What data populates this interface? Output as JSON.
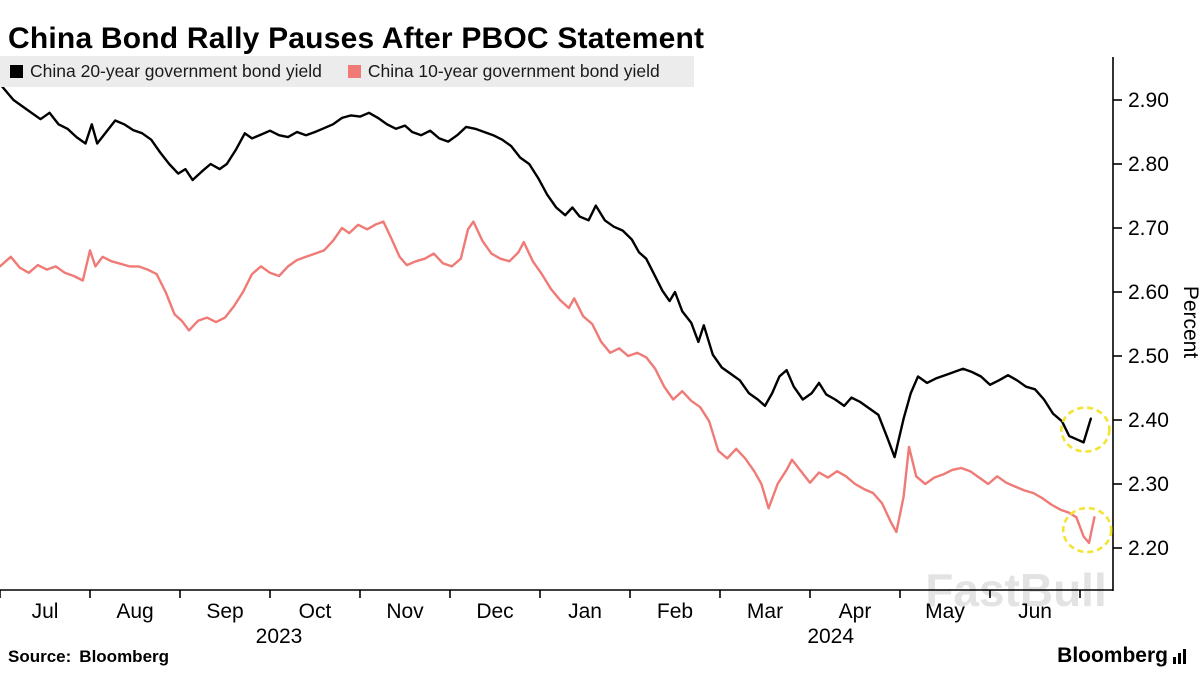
{
  "title": "China Bond Rally Pauses After PBOC Statement",
  "legend": {
    "items": [
      {
        "label": "China 20-year government bond yield",
        "color": "#000000"
      },
      {
        "label": "China 10-year government bond yield",
        "color": "#ef7a76"
      }
    ]
  },
  "watermark": "FastBull",
  "footer": {
    "source_label": "Source:",
    "source_value": "Bloomberg",
    "brand": "Bloomberg"
  },
  "chart_data": {
    "type": "line",
    "title": "China Bond Rally Pauses After PBOC Statement",
    "xlabel": "",
    "ylabel": "Percent",
    "ylim": [
      2.15,
      2.95
    ],
    "yticks": [
      2.2,
      2.3,
      2.4,
      2.5,
      2.6,
      2.7,
      2.8,
      2.9
    ],
    "x_months": [
      "Jul",
      "Aug",
      "Sep",
      "Oct",
      "Nov",
      "Dec",
      "Jan",
      "Feb",
      "Mar",
      "Apr",
      "May",
      "Jun"
    ],
    "year_labels": [
      {
        "text": "2023",
        "month_x": 2.6
      },
      {
        "text": "2024",
        "month_x": 8.73
      }
    ],
    "grid": false,
    "legend_position": "top-left",
    "axis_color": "#000000",
    "highlight_color": "#f2e431",
    "series": [
      {
        "name": "China 20-year government bond yield",
        "color": "#000000",
        "points": [
          [
            -0.5,
            2.925
          ],
          [
            -0.35,
            2.9
          ],
          [
            -0.2,
            2.885
          ],
          [
            -0.05,
            2.87
          ],
          [
            0.05,
            2.88
          ],
          [
            0.15,
            2.862
          ],
          [
            0.25,
            2.855
          ],
          [
            0.35,
            2.842
          ],
          [
            0.45,
            2.832
          ],
          [
            0.52,
            2.862
          ],
          [
            0.58,
            2.832
          ],
          [
            0.68,
            2.85
          ],
          [
            0.78,
            2.868
          ],
          [
            0.88,
            2.862
          ],
          [
            0.98,
            2.853
          ],
          [
            1.08,
            2.848
          ],
          [
            1.18,
            2.838
          ],
          [
            1.28,
            2.818
          ],
          [
            1.38,
            2.8
          ],
          [
            1.48,
            2.785
          ],
          [
            1.56,
            2.792
          ],
          [
            1.64,
            2.775
          ],
          [
            1.74,
            2.788
          ],
          [
            1.84,
            2.8
          ],
          [
            1.94,
            2.792
          ],
          [
            2.02,
            2.8
          ],
          [
            2.12,
            2.822
          ],
          [
            2.22,
            2.848
          ],
          [
            2.3,
            2.84
          ],
          [
            2.4,
            2.846
          ],
          [
            2.5,
            2.852
          ],
          [
            2.6,
            2.845
          ],
          [
            2.7,
            2.842
          ],
          [
            2.8,
            2.85
          ],
          [
            2.9,
            2.845
          ],
          [
            3.0,
            2.85
          ],
          [
            3.1,
            2.856
          ],
          [
            3.2,
            2.862
          ],
          [
            3.3,
            2.872
          ],
          [
            3.4,
            2.876
          ],
          [
            3.5,
            2.874
          ],
          [
            3.6,
            2.88
          ],
          [
            3.7,
            2.872
          ],
          [
            3.8,
            2.862
          ],
          [
            3.9,
            2.855
          ],
          [
            4.0,
            2.86
          ],
          [
            4.08,
            2.85
          ],
          [
            4.18,
            2.845
          ],
          [
            4.28,
            2.852
          ],
          [
            4.38,
            2.84
          ],
          [
            4.48,
            2.835
          ],
          [
            4.58,
            2.845
          ],
          [
            4.68,
            2.858
          ],
          [
            4.78,
            2.855
          ],
          [
            4.88,
            2.85
          ],
          [
            4.98,
            2.845
          ],
          [
            5.08,
            2.838
          ],
          [
            5.18,
            2.828
          ],
          [
            5.28,
            2.81
          ],
          [
            5.38,
            2.8
          ],
          [
            5.48,
            2.778
          ],
          [
            5.58,
            2.752
          ],
          [
            5.68,
            2.732
          ],
          [
            5.78,
            2.72
          ],
          [
            5.86,
            2.732
          ],
          [
            5.94,
            2.718
          ],
          [
            6.04,
            2.712
          ],
          [
            6.12,
            2.735
          ],
          [
            6.22,
            2.712
          ],
          [
            6.32,
            2.702
          ],
          [
            6.42,
            2.696
          ],
          [
            6.52,
            2.682
          ],
          [
            6.6,
            2.662
          ],
          [
            6.68,
            2.652
          ],
          [
            6.76,
            2.63
          ],
          [
            6.86,
            2.602
          ],
          [
            6.94,
            2.586
          ],
          [
            7.0,
            2.6
          ],
          [
            7.08,
            2.57
          ],
          [
            7.18,
            2.552
          ],
          [
            7.26,
            2.522
          ],
          [
            7.32,
            2.548
          ],
          [
            7.42,
            2.502
          ],
          [
            7.52,
            2.482
          ],
          [
            7.62,
            2.472
          ],
          [
            7.72,
            2.462
          ],
          [
            7.82,
            2.442
          ],
          [
            7.92,
            2.432
          ],
          [
            8.0,
            2.422
          ],
          [
            8.08,
            2.442
          ],
          [
            8.16,
            2.468
          ],
          [
            8.24,
            2.478
          ],
          [
            8.32,
            2.452
          ],
          [
            8.42,
            2.432
          ],
          [
            8.52,
            2.442
          ],
          [
            8.6,
            2.458
          ],
          [
            8.68,
            2.44
          ],
          [
            8.78,
            2.432
          ],
          [
            8.88,
            2.422
          ],
          [
            8.96,
            2.435
          ],
          [
            9.06,
            2.428
          ],
          [
            9.16,
            2.418
          ],
          [
            9.26,
            2.408
          ],
          [
            9.36,
            2.372
          ],
          [
            9.44,
            2.342
          ],
          [
            9.54,
            2.402
          ],
          [
            9.62,
            2.442
          ],
          [
            9.7,
            2.468
          ],
          [
            9.8,
            2.458
          ],
          [
            9.9,
            2.465
          ],
          [
            10.0,
            2.47
          ],
          [
            10.1,
            2.475
          ],
          [
            10.2,
            2.48
          ],
          [
            10.3,
            2.475
          ],
          [
            10.4,
            2.468
          ],
          [
            10.5,
            2.455
          ],
          [
            10.6,
            2.462
          ],
          [
            10.7,
            2.47
          ],
          [
            10.8,
            2.462
          ],
          [
            10.9,
            2.452
          ],
          [
            11.0,
            2.448
          ],
          [
            11.1,
            2.432
          ],
          [
            11.2,
            2.41
          ],
          [
            11.3,
            2.398
          ],
          [
            11.38,
            2.375
          ],
          [
            11.46,
            2.37
          ],
          [
            11.54,
            2.365
          ],
          [
            11.62,
            2.402
          ]
        ]
      },
      {
        "name": "China 10-year government bond yield",
        "color": "#ef7a76",
        "points": [
          [
            -0.5,
            2.64
          ],
          [
            -0.38,
            2.655
          ],
          [
            -0.28,
            2.638
          ],
          [
            -0.18,
            2.63
          ],
          [
            -0.08,
            2.642
          ],
          [
            0.02,
            2.635
          ],
          [
            0.12,
            2.64
          ],
          [
            0.22,
            2.63
          ],
          [
            0.32,
            2.625
          ],
          [
            0.42,
            2.618
          ],
          [
            0.5,
            2.665
          ],
          [
            0.56,
            2.64
          ],
          [
            0.64,
            2.655
          ],
          [
            0.74,
            2.648
          ],
          [
            0.84,
            2.644
          ],
          [
            0.94,
            2.64
          ],
          [
            1.04,
            2.64
          ],
          [
            1.14,
            2.635
          ],
          [
            1.24,
            2.628
          ],
          [
            1.34,
            2.6
          ],
          [
            1.44,
            2.565
          ],
          [
            1.52,
            2.555
          ],
          [
            1.6,
            2.54
          ],
          [
            1.7,
            2.555
          ],
          [
            1.8,
            2.56
          ],
          [
            1.9,
            2.553
          ],
          [
            2.0,
            2.56
          ],
          [
            2.1,
            2.578
          ],
          [
            2.2,
            2.6
          ],
          [
            2.3,
            2.628
          ],
          [
            2.4,
            2.64
          ],
          [
            2.5,
            2.63
          ],
          [
            2.6,
            2.625
          ],
          [
            2.7,
            2.64
          ],
          [
            2.8,
            2.65
          ],
          [
            2.9,
            2.655
          ],
          [
            3.0,
            2.66
          ],
          [
            3.1,
            2.665
          ],
          [
            3.2,
            2.68
          ],
          [
            3.3,
            2.7
          ],
          [
            3.38,
            2.692
          ],
          [
            3.48,
            2.705
          ],
          [
            3.58,
            2.698
          ],
          [
            3.68,
            2.706
          ],
          [
            3.76,
            2.71
          ],
          [
            3.86,
            2.68
          ],
          [
            3.94,
            2.655
          ],
          [
            4.02,
            2.642
          ],
          [
            4.12,
            2.648
          ],
          [
            4.22,
            2.652
          ],
          [
            4.32,
            2.66
          ],
          [
            4.42,
            2.645
          ],
          [
            4.52,
            2.64
          ],
          [
            4.62,
            2.652
          ],
          [
            4.7,
            2.698
          ],
          [
            4.76,
            2.71
          ],
          [
            4.86,
            2.68
          ],
          [
            4.96,
            2.66
          ],
          [
            5.06,
            2.652
          ],
          [
            5.16,
            2.648
          ],
          [
            5.26,
            2.662
          ],
          [
            5.32,
            2.678
          ],
          [
            5.42,
            2.648
          ],
          [
            5.52,
            2.628
          ],
          [
            5.62,
            2.605
          ],
          [
            5.72,
            2.588
          ],
          [
            5.82,
            2.575
          ],
          [
            5.88,
            2.59
          ],
          [
            5.98,
            2.562
          ],
          [
            6.08,
            2.55
          ],
          [
            6.18,
            2.522
          ],
          [
            6.28,
            2.505
          ],
          [
            6.38,
            2.512
          ],
          [
            6.48,
            2.5
          ],
          [
            6.58,
            2.505
          ],
          [
            6.68,
            2.498
          ],
          [
            6.78,
            2.48
          ],
          [
            6.88,
            2.452
          ],
          [
            6.98,
            2.432
          ],
          [
            7.08,
            2.445
          ],
          [
            7.18,
            2.43
          ],
          [
            7.28,
            2.42
          ],
          [
            7.38,
            2.398
          ],
          [
            7.48,
            2.352
          ],
          [
            7.58,
            2.34
          ],
          [
            7.68,
            2.355
          ],
          [
            7.78,
            2.34
          ],
          [
            7.88,
            2.32
          ],
          [
            7.96,
            2.3
          ],
          [
            8.04,
            2.262
          ],
          [
            8.14,
            2.3
          ],
          [
            8.24,
            2.322
          ],
          [
            8.3,
            2.338
          ],
          [
            8.4,
            2.32
          ],
          [
            8.5,
            2.302
          ],
          [
            8.6,
            2.318
          ],
          [
            8.7,
            2.31
          ],
          [
            8.8,
            2.32
          ],
          [
            8.9,
            2.312
          ],
          [
            9.0,
            2.3
          ],
          [
            9.1,
            2.292
          ],
          [
            9.2,
            2.286
          ],
          [
            9.3,
            2.27
          ],
          [
            9.4,
            2.24
          ],
          [
            9.46,
            2.225
          ],
          [
            9.54,
            2.28
          ],
          [
            9.6,
            2.358
          ],
          [
            9.68,
            2.312
          ],
          [
            9.78,
            2.3
          ],
          [
            9.88,
            2.31
          ],
          [
            9.98,
            2.315
          ],
          [
            10.08,
            2.322
          ],
          [
            10.18,
            2.325
          ],
          [
            10.28,
            2.32
          ],
          [
            10.38,
            2.31
          ],
          [
            10.48,
            2.3
          ],
          [
            10.58,
            2.312
          ],
          [
            10.68,
            2.302
          ],
          [
            10.78,
            2.296
          ],
          [
            10.88,
            2.29
          ],
          [
            10.98,
            2.286
          ],
          [
            11.08,
            2.278
          ],
          [
            11.18,
            2.268
          ],
          [
            11.28,
            2.26
          ],
          [
            11.38,
            2.255
          ],
          [
            11.46,
            2.248
          ],
          [
            11.54,
            2.218
          ],
          [
            11.6,
            2.208
          ],
          [
            11.66,
            2.248
          ]
        ]
      }
    ],
    "annotations": [
      {
        "type": "dashed-circle",
        "color": "#f2e431",
        "month_x": 11.56,
        "y": 2.385
      },
      {
        "type": "dashed-circle",
        "color": "#f2e431",
        "month_x": 11.58,
        "y": 2.228
      }
    ]
  }
}
